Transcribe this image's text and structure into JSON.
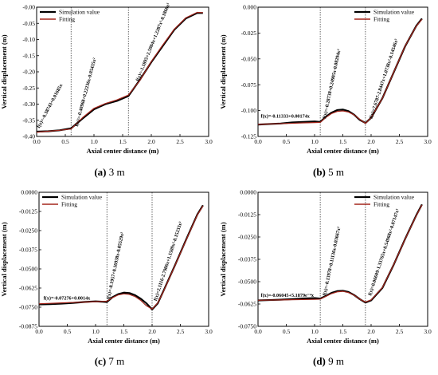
{
  "figure": {
    "series_colors": {
      "Simulation value": "#000000",
      "Fitting": "#a3261c"
    }
  },
  "chart_data": [
    {
      "type": "line",
      "caption_letter": "(a)",
      "caption_text": "3 m",
      "xlabel": "Axial center distance (m)",
      "ylabel": "Vertical displacement (m)",
      "xlim": [
        0.0,
        3.0
      ],
      "ylim": [
        -0.4,
        -0.0
      ],
      "xticks": [
        0.0,
        0.5,
        1.0,
        1.5,
        2.0,
        2.5,
        3.0
      ],
      "xtick_labels": [
        "0.0",
        "0.5",
        "1.0",
        "1.5",
        "2.0",
        "2.5",
        "3.0"
      ],
      "yticks": [
        -0.4,
        -0.35,
        -0.3,
        -0.25,
        -0.2,
        -0.15,
        -0.1,
        -0.05,
        0.0
      ],
      "ytick_labels": [
        "-0.40",
        "-0.35",
        "-0.30",
        "-0.25",
        "-0.20",
        "-0.15",
        "-0.10",
        "-0.05",
        "-0.00"
      ],
      "dividers_x": [
        0.6,
        1.6
      ],
      "legend": [
        "Simulation value",
        "Fitting"
      ],
      "legend_position": "top-left",
      "equations": [
        {
          "text": "f(x)=-0.38743+0.01685x",
          "x": 0.05,
          "y": -0.375,
          "angle": -62
        },
        {
          "text": "f(x)=-0.40968+0.22236x-0.05435x²",
          "x": 0.72,
          "y": -0.37,
          "angle": -75
        },
        {
          "text": "f(x)=-1.1895+2.5904x+1.2287x²-0.1868x³",
          "x": 1.78,
          "y": -0.23,
          "angle": -68
        }
      ],
      "series": [
        {
          "name": "Simulation value",
          "x": [
            0.0,
            0.2,
            0.4,
            0.6,
            0.8,
            1.0,
            1.2,
            1.4,
            1.6,
            1.8,
            2.0,
            2.2,
            2.4,
            2.6,
            2.8,
            2.9
          ],
          "y": [
            -0.385,
            -0.384,
            -0.381,
            -0.375,
            -0.345,
            -0.316,
            -0.3,
            -0.29,
            -0.275,
            -0.225,
            -0.17,
            -0.12,
            -0.07,
            -0.035,
            -0.018,
            -0.018
          ]
        },
        {
          "name": "Fitting",
          "x": [
            0.0,
            0.2,
            0.4,
            0.6,
            0.8,
            1.0,
            1.2,
            1.4,
            1.6,
            1.8,
            2.0,
            2.2,
            2.4,
            2.6,
            2.8,
            2.9
          ],
          "y": [
            -0.387,
            -0.384,
            -0.381,
            -0.377,
            -0.342,
            -0.313,
            -0.298,
            -0.287,
            -0.272,
            -0.227,
            -0.168,
            -0.117,
            -0.068,
            -0.033,
            -0.016,
            -0.017
          ]
        }
      ]
    },
    {
      "type": "line",
      "caption_letter": "(b)",
      "caption_text": "5 m",
      "xlabel": "Axial center distance (m)",
      "ylabel": "Vertical displacement (m)",
      "xlim": [
        0.0,
        3.0
      ],
      "ylim": [
        -0.125,
        0.0
      ],
      "xticks": [
        0.0,
        0.5,
        1.0,
        1.5,
        2.0,
        2.5,
        3.0
      ],
      "xtick_labels": [
        "0.0",
        "0.5",
        "1.0",
        "1.5",
        "2.0",
        "2.5",
        "3.0"
      ],
      "yticks": [
        -0.125,
        -0.1,
        -0.075,
        -0.05,
        -0.025,
        0.0
      ],
      "ytick_labels": [
        "-0.125",
        "-0.100",
        "-0.075",
        "-0.050",
        "-0.025",
        "0.000"
      ],
      "dividers_x": [
        1.1,
        1.9
      ],
      "legend": [
        "Simulation value",
        "Fitting"
      ],
      "legend_position": "top-right",
      "equations": [
        {
          "text": "f(x)=-0.11333+0.00174x",
          "x": 0.05,
          "y": -0.107,
          "angle": 0
        },
        {
          "text": "f(x)=-0.28738+0.24905x-0.08294x²",
          "x": 1.2,
          "y": -0.108,
          "angle": -78
        },
        {
          "text": "f(x)=7.6787-2.8447x+1.0738x²-0.14546x³",
          "x": 2.02,
          "y": -0.108,
          "angle": -72
        }
      ],
      "series": [
        {
          "name": "Simulation value",
          "x": [
            0.0,
            0.2,
            0.4,
            0.6,
            0.8,
            1.0,
            1.1,
            1.2,
            1.3,
            1.4,
            1.5,
            1.6,
            1.7,
            1.8,
            1.9,
            2.0,
            2.2,
            2.4,
            2.6,
            2.8,
            2.9
          ],
          "y": [
            -0.1135,
            -0.113,
            -0.1125,
            -0.1115,
            -0.111,
            -0.1105,
            -0.111,
            -0.106,
            -0.102,
            -0.0995,
            -0.099,
            -0.1005,
            -0.104,
            -0.109,
            -0.112,
            -0.107,
            -0.088,
            -0.063,
            -0.038,
            -0.018,
            -0.011
          ]
        },
        {
          "name": "Fitting",
          "x": [
            0.0,
            0.2,
            0.4,
            0.6,
            0.8,
            1.0,
            1.1,
            1.2,
            1.3,
            1.4,
            1.5,
            1.6,
            1.7,
            1.8,
            1.9,
            2.0,
            2.2,
            2.4,
            2.6,
            2.8,
            2.9
          ],
          "y": [
            -0.1133,
            -0.1129,
            -0.1126,
            -0.1123,
            -0.1119,
            -0.1116,
            -0.1114,
            -0.1066,
            -0.1029,
            -0.1008,
            -0.1003,
            -0.1014,
            -0.1042,
            -0.1085,
            -0.1124,
            -0.1068,
            -0.0881,
            -0.0629,
            -0.0377,
            -0.0183,
            -0.0117
          ]
        }
      ]
    },
    {
      "type": "line",
      "caption_letter": "(c)",
      "caption_text": "7 m",
      "xlabel": "Axial center distance (m)",
      "ylabel": "Vertical displacement (m)",
      "xlim": [
        0.0,
        3.0
      ],
      "ylim": [
        -0.0875,
        0.0
      ],
      "xticks": [
        0.0,
        0.5,
        1.0,
        1.5,
        2.0,
        2.5,
        3.0
      ],
      "xtick_labels": [
        "0.0",
        "0.5",
        "1.0",
        "1.5",
        "2.0",
        "2.5",
        "3.0"
      ],
      "yticks": [
        -0.0875,
        -0.075,
        -0.0625,
        -0.05,
        -0.0375,
        -0.025,
        -0.0125,
        0.0
      ],
      "ytick_labels": [
        "-0.0875",
        "-0.0750",
        "-0.0625",
        "-0.0500",
        "-0.0375",
        "-0.0250",
        "-0.0125",
        "0.0000"
      ],
      "dividers_x": [
        1.2,
        2.0
      ],
      "legend": [
        "Simulation value",
        "Fitting"
      ],
      "legend_position": "top-left",
      "equations": [
        {
          "text": "f(x)=-0.07276+0.0014x",
          "x": 0.08,
          "y": -0.07,
          "angle": 0
        },
        {
          "text": "f(x)=-0.1957+0.16938x-0.05529x²",
          "x": 1.25,
          "y": -0.07,
          "angle": -78
        },
        {
          "text": "f(x)=2.1116-2.7906x+1.1509x²-0.15233x³",
          "x": 2.08,
          "y": -0.071,
          "angle": -72
        }
      ],
      "series": [
        {
          "name": "Simulation value",
          "x": [
            0.0,
            0.2,
            0.4,
            0.6,
            0.8,
            1.0,
            1.2,
            1.3,
            1.4,
            1.5,
            1.6,
            1.7,
            1.8,
            1.9,
            2.0,
            2.1,
            2.2,
            2.4,
            2.6,
            2.8,
            2.9
          ],
          "y": [
            -0.0732,
            -0.073,
            -0.0727,
            -0.0722,
            -0.0716,
            -0.0712,
            -0.0716,
            -0.0685,
            -0.0665,
            -0.0655,
            -0.0658,
            -0.0672,
            -0.0695,
            -0.0725,
            -0.0765,
            -0.0725,
            -0.0645,
            -0.048,
            -0.031,
            -0.0145,
            -0.0085
          ]
        },
        {
          "name": "Fitting",
          "x": [
            0.0,
            0.2,
            0.4,
            0.6,
            0.8,
            1.0,
            1.2,
            1.3,
            1.4,
            1.5,
            1.6,
            1.7,
            1.8,
            1.9,
            2.0,
            2.1,
            2.2,
            2.4,
            2.6,
            2.8,
            2.9
          ],
          "y": [
            -0.0728,
            -0.0725,
            -0.0722,
            -0.0719,
            -0.0717,
            -0.0714,
            -0.0711,
            -0.0688,
            -0.067,
            -0.0663,
            -0.0667,
            -0.0681,
            -0.0706,
            -0.0741,
            -0.0762,
            -0.0722,
            -0.0648,
            -0.0482,
            -0.0313,
            -0.0148,
            -0.0088
          ]
        }
      ]
    },
    {
      "type": "line",
      "caption_letter": "(d)",
      "caption_text": "9 m",
      "xlabel": "Axial center distance (m)",
      "ylabel": "Vertical displacement (m)",
      "xlim": [
        0.0,
        3.0
      ],
      "ylim": [
        -0.075,
        0.0
      ],
      "xticks": [
        0.0,
        0.5,
        1.0,
        1.5,
        2.0,
        2.5,
        3.0
      ],
      "xtick_labels": [
        "0.0",
        "0.5",
        "1.0",
        "1.5",
        "2.0",
        "2.5",
        "3.0"
      ],
      "yticks": [
        -0.075,
        -0.0625,
        -0.05,
        -0.0375,
        -0.025,
        -0.0125,
        0.0
      ],
      "ytick_labels": [
        "-0.0750",
        "-0.0625",
        "-0.0500",
        "-0.0375",
        "-0.0250",
        "-0.0125",
        "0.0000"
      ],
      "dividers_x": [
        1.1,
        1.9
      ],
      "legend": [
        "Simulation value",
        "Fitting"
      ],
      "legend_position": "top-right",
      "equations": [
        {
          "text": "f(x)=-0.06045+5.1879e⁻⁴x",
          "x": 0.05,
          "y": -0.0585,
          "angle": 0
        },
        {
          "text": "f(x)=-0.13978+0.11136x-0.03667x²",
          "x": 1.2,
          "y": -0.058,
          "angle": -78
        },
        {
          "text": "f(x)=0.06609-1.33765x+0.54968x²-0.07147x³",
          "x": 2.0,
          "y": -0.058,
          "angle": -72
        }
      ],
      "series": [
        {
          "name": "Simulation value",
          "x": [
            0.0,
            0.2,
            0.4,
            0.6,
            0.8,
            1.0,
            1.1,
            1.2,
            1.3,
            1.4,
            1.5,
            1.6,
            1.7,
            1.8,
            1.9,
            2.0,
            2.2,
            2.4,
            2.6,
            2.8,
            2.9
          ],
          "y": [
            -0.0605,
            -0.0603,
            -0.0601,
            -0.0598,
            -0.0594,
            -0.0592,
            -0.0595,
            -0.058,
            -0.0563,
            -0.0553,
            -0.0551,
            -0.0558,
            -0.0575,
            -0.0598,
            -0.0617,
            -0.0605,
            -0.0535,
            -0.0405,
            -0.0262,
            -0.0128,
            -0.0068
          ]
        },
        {
          "name": "Fitting",
          "x": [
            0.0,
            0.2,
            0.4,
            0.6,
            0.8,
            1.0,
            1.1,
            1.2,
            1.3,
            1.4,
            1.5,
            1.6,
            1.7,
            1.8,
            1.9,
            2.0,
            2.2,
            2.4,
            2.6,
            2.8,
            2.9
          ],
          "y": [
            -0.0604,
            -0.0603,
            -0.0602,
            -0.0601,
            -0.06,
            -0.0599,
            -0.0598,
            -0.0582,
            -0.0567,
            -0.0557,
            -0.0554,
            -0.0561,
            -0.0576,
            -0.0598,
            -0.0614,
            -0.0602,
            -0.0533,
            -0.0404,
            -0.0263,
            -0.013,
            -0.0071
          ]
        }
      ]
    }
  ]
}
